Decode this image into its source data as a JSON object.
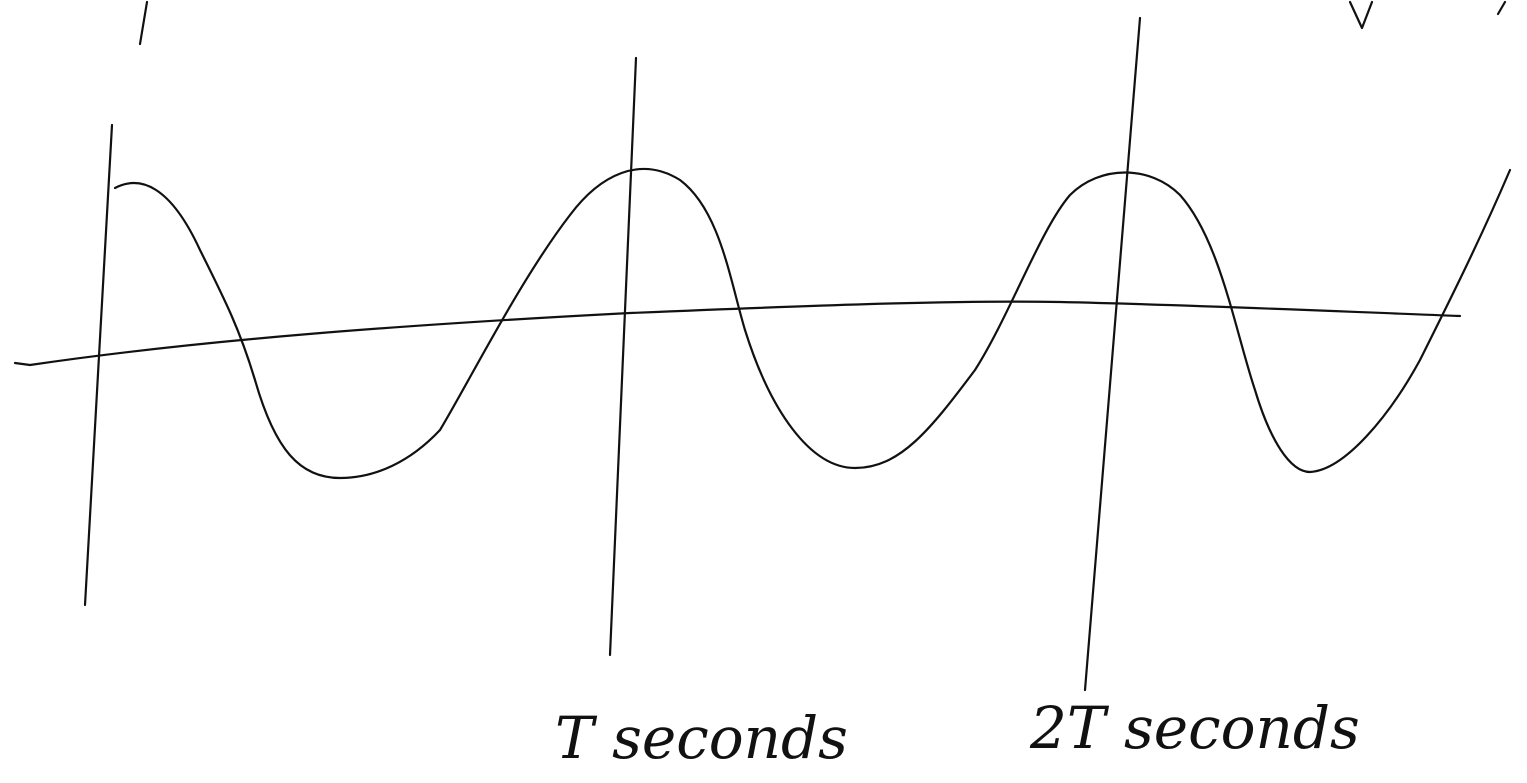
{
  "labels": [
    "T seconds",
    "2T seconds"
  ]
}
